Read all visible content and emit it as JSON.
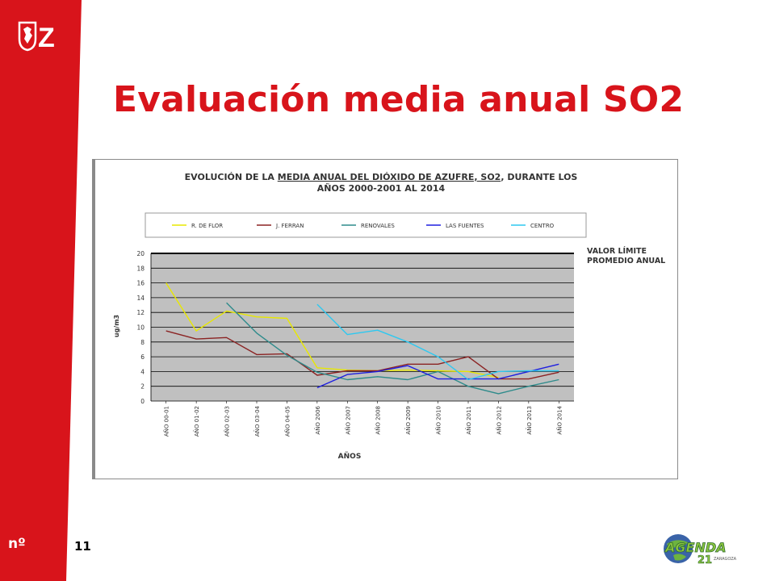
{
  "slide": {
    "title": "Evaluación media anual SO2",
    "page_number": "11",
    "nro_label": "nº",
    "brand_logo_text": "Z",
    "agenda_logo": {
      "word": "AGENDA",
      "number": "21",
      "city": "ZARAGOZA"
    }
  },
  "colors": {
    "brand_red": "#d8141b",
    "plot_bg": "#c0c0c0"
  },
  "chart_data": {
    "type": "line",
    "title_line1_pre": "EVOLUCIÓN DE LA ",
    "title_line1_underlined": "MEDIA ANUAL DEL DIÓXIDO DE AZUFRE, SO2",
    "title_line1_post": ", DURANTE LOS",
    "title_line2": "AÑOS 2000-2001 AL 2014",
    "xlabel": "AÑOS",
    "ylabel": "ug/m3",
    "ylim": [
      0,
      20
    ],
    "yticks": [
      0,
      2,
      4,
      6,
      8,
      10,
      12,
      14,
      16,
      18,
      20
    ],
    "grid": true,
    "legend_position": "top",
    "categories": [
      "AÑO 00-01",
      "AÑO 01-02",
      "AÑO 02-03",
      "AÑO 03-04",
      "AÑO 04-05",
      "AÑO 2006",
      "AÑO 2007",
      "AÑO 2008",
      "AÑO 2009",
      "AÑO 2010",
      "AÑO 2011",
      "AÑO 2012",
      "AÑO 2013",
      "AÑO 2014"
    ],
    "series": [
      {
        "name": "R. DE FLOR",
        "color": "#e8e800",
        "values": [
          16,
          9.5,
          12.2,
          11.4,
          11.2,
          4.5,
          4.2,
          4.1,
          4.2,
          4.1,
          4.0,
          3.2,
          null,
          null
        ]
      },
      {
        "name": "J. FERRAN",
        "color": "#8b2323",
        "values": [
          9.5,
          8.4,
          8.6,
          6.3,
          6.4,
          3.5,
          4.1,
          4.1,
          5.0,
          5.0,
          6.0,
          3.0,
          3.0,
          3.9
        ]
      },
      {
        "name": "RENOVALES",
        "color": "#2e8b8b",
        "values": [
          null,
          null,
          13.3,
          9.2,
          6.2,
          3.9,
          2.9,
          3.3,
          2.9,
          4.0,
          2.0,
          1.0,
          2.0,
          2.9
        ]
      },
      {
        "name": "LAS FUENTES",
        "color": "#1e1ee0",
        "values": [
          null,
          null,
          null,
          null,
          null,
          1.8,
          3.6,
          4.0,
          4.8,
          3.0,
          3.0,
          3.0,
          4.0,
          5.0
        ]
      },
      {
        "name": "CENTRO",
        "color": "#2ec8f0",
        "values": [
          null,
          null,
          null,
          null,
          null,
          13.1,
          9.0,
          9.6,
          8.0,
          6.0,
          2.9,
          4.0,
          4.1,
          4.1
        ]
      }
    ],
    "limit_line": {
      "value": 20,
      "label_line1": "VALOR LÍMITE",
      "label_line2": "PROMEDIO ANUAL"
    }
  }
}
